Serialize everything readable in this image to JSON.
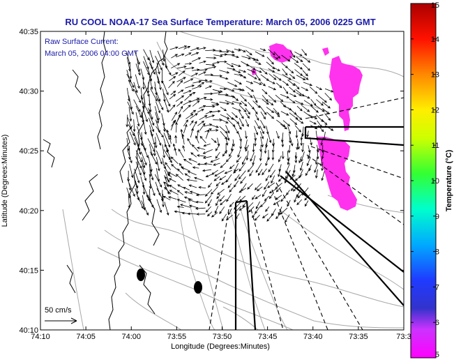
{
  "title": "RU COOL  NOAA-17  Sea Surface Temperature:  March 05, 2006 0225 GMT",
  "overlay": {
    "line1": "Raw Surface Current:",
    "line2": "March 05, 2006 04:00 GMT"
  },
  "scale_label": "50 cm/s",
  "x_axis": {
    "label": "Longitude (Degrees:Minutes)",
    "ticks": [
      "74:10",
      "74:05",
      "74:00",
      "73:55",
      "73:50",
      "73:45",
      "73:40",
      "73:35",
      "73:3"
    ]
  },
  "y_axis": {
    "label": "Latitude (Degrees:Minutes)",
    "ticks": [
      "40:35",
      "40:30",
      "40:25",
      "40:20",
      "40:15",
      "40:10"
    ]
  },
  "colorbar": {
    "label": "Temperature (°C)",
    "ticks": [
      "15",
      "14",
      "13",
      "12",
      "11",
      "10",
      "9",
      "8",
      "7",
      "6",
      "5"
    ],
    "min": 5,
    "max": 15,
    "colors": [
      "#ff00ff",
      "#2020ff",
      "#00ccff",
      "#00ff99",
      "#33ff00",
      "#ffff00",
      "#ff9900",
      "#ff0000",
      "#aa0000"
    ]
  },
  "map_data": {
    "extent": {
      "lon": [
        "74:10",
        "73:30"
      ],
      "lat": [
        "40:10",
        "40:35"
      ]
    },
    "sst_patch_color": "#ff33ee",
    "coast_color": "#000000",
    "contour_color": "#999999",
    "vector_color": "#000000"
  }
}
